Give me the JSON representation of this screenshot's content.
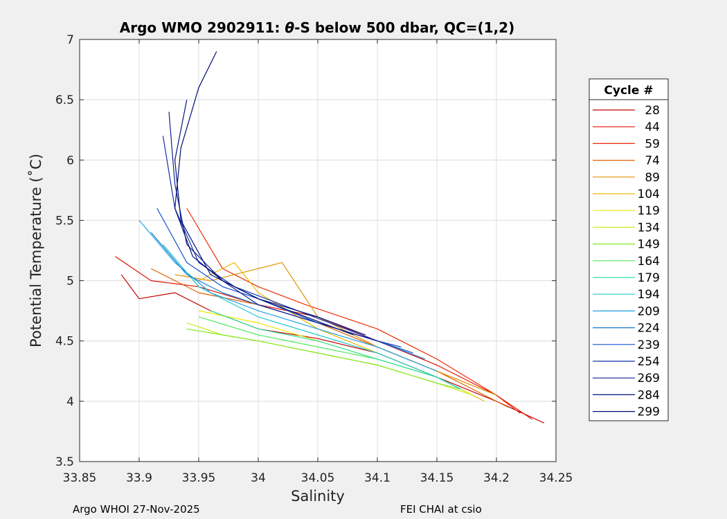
{
  "chart_data": {
    "type": "line",
    "title_prefix": "Argo WMO 2902911: ",
    "title_theta": "θ",
    "title_suffix": "-S below 500 dbar,  QC=(1,2)",
    "xlabel": "Salinity",
    "ylabel": "Potential Temperature (˚C)",
    "xlim": [
      33.85,
      34.25
    ],
    "ylim": [
      3.5,
      7
    ],
    "xticks": [
      33.85,
      33.9,
      33.95,
      34,
      34.05,
      34.1,
      34.15,
      34.2,
      34.25
    ],
    "xtick_labels": [
      "33.85",
      "33.9",
      "33.95",
      "34",
      "34.05",
      "34.1",
      "34.15",
      "34.2",
      "34.25"
    ],
    "yticks": [
      3.5,
      4,
      4.5,
      5,
      5.5,
      6,
      6.5,
      7
    ],
    "ytick_labels": [
      "3.5",
      "4",
      "4.5",
      "5",
      "5.5",
      "6",
      "6.5",
      "7"
    ],
    "grid": true,
    "legend_title": "Cycle #",
    "legend_position": "right-outside",
    "legend_entries": [
      "28",
      "44",
      "59",
      "74",
      "89",
      "104",
      "119",
      "134",
      "149",
      "164",
      "179",
      "194",
      "209",
      "224",
      "239",
      "254",
      "269",
      "284",
      "299"
    ],
    "legend_colors": [
      "#c00000",
      "#e01000",
      "#f02800",
      "#e06000",
      "#e09000",
      "#f0b800",
      "#e8e800",
      "#c8ec20",
      "#80e820",
      "#50e860",
      "#30e0a0",
      "#20c8d0",
      "#20a0e0",
      "#1078d0",
      "#1050d0",
      "#1030a8",
      "#102090",
      "#001480",
      "#000c70"
    ],
    "series": [
      {
        "name": "28",
        "color": "#c00000",
        "x": [
          33.885,
          33.9,
          33.93,
          33.96,
          34.0,
          34.05,
          34.1,
          34.15,
          34.2,
          34.24
        ],
        "y": [
          5.05,
          4.85,
          4.9,
          4.75,
          4.6,
          4.52,
          4.4,
          4.2,
          4.0,
          3.82
        ]
      },
      {
        "name": "44",
        "color": "#e01000",
        "x": [
          33.88,
          33.91,
          33.95,
          34.0,
          34.05,
          34.1,
          34.15,
          34.2,
          34.23
        ],
        "y": [
          5.2,
          5.0,
          4.95,
          4.8,
          4.7,
          4.5,
          4.3,
          4.05,
          3.85
        ]
      },
      {
        "name": "59",
        "color": "#f02800",
        "x": [
          33.94,
          33.97,
          34.0,
          34.04,
          34.1,
          34.15,
          34.2,
          34.22
        ],
        "y": [
          5.6,
          5.1,
          4.95,
          4.8,
          4.6,
          4.35,
          4.05,
          3.9
        ]
      },
      {
        "name": "74",
        "color": "#e06000",
        "x": [
          33.91,
          33.95,
          34.0,
          34.05,
          34.1,
          34.15,
          34.2,
          34.21
        ],
        "y": [
          5.1,
          4.9,
          4.8,
          4.65,
          4.45,
          4.25,
          4.0,
          3.95
        ]
      },
      {
        "name": "89",
        "color": "#e09000",
        "x": [
          33.93,
          33.96,
          34.0,
          34.02,
          34.05,
          34.1,
          34.15,
          34.2
        ],
        "y": [
          5.05,
          5.0,
          5.1,
          5.15,
          4.7,
          4.45,
          4.25,
          4.05
        ]
      },
      {
        "name": "104",
        "color": "#f0b800",
        "x": [
          33.95,
          33.98,
          34.0,
          34.05,
          34.1,
          34.15,
          34.19
        ],
        "y": [
          5.0,
          5.15,
          4.9,
          4.6,
          4.4,
          4.2,
          4.0
        ]
      },
      {
        "name": "119",
        "color": "#e8e800",
        "x": [
          33.95,
          34.0,
          34.05,
          34.1,
          34.15,
          34.18
        ],
        "y": [
          4.75,
          4.65,
          4.5,
          4.35,
          4.2,
          4.05
        ]
      },
      {
        "name": "134",
        "color": "#c8ec20",
        "x": [
          33.94,
          33.97,
          34.0,
          34.05,
          34.1,
          34.15,
          34.18
        ],
        "y": [
          4.65,
          4.55,
          4.5,
          4.4,
          4.3,
          4.15,
          4.05
        ]
      },
      {
        "name": "149",
        "color": "#80e820",
        "x": [
          33.94,
          33.97,
          34.0,
          34.05,
          34.1,
          34.15,
          34.17
        ],
        "y": [
          4.6,
          4.55,
          4.5,
          4.4,
          4.3,
          4.15,
          4.1
        ]
      },
      {
        "name": "164",
        "color": "#50e860",
        "x": [
          33.95,
          34.0,
          34.05,
          34.1,
          34.15,
          34.17
        ],
        "y": [
          4.7,
          4.55,
          4.45,
          4.35,
          4.2,
          4.1
        ]
      },
      {
        "name": "179",
        "color": "#30e0a0",
        "x": [
          33.96,
          34.0,
          34.05,
          34.1,
          34.15,
          34.17
        ],
        "y": [
          4.75,
          4.6,
          4.5,
          4.35,
          4.2,
          4.1
        ]
      },
      {
        "name": "194",
        "color": "#20c8d0",
        "x": [
          33.92,
          33.95,
          34.0,
          34.05,
          34.1,
          34.15,
          34.17
        ],
        "y": [
          5.3,
          4.95,
          4.7,
          4.55,
          4.4,
          4.2,
          4.1
        ]
      },
      {
        "name": "209",
        "color": "#20a0e0",
        "x": [
          33.9,
          33.93,
          33.96,
          34.0,
          34.05,
          34.1,
          34.15
        ],
        "y": [
          5.5,
          5.15,
          4.9,
          4.75,
          4.6,
          4.45,
          4.25
        ]
      },
      {
        "name": "224",
        "color": "#1078d0",
        "x": [
          33.91,
          33.94,
          33.97,
          34.0,
          34.05,
          34.1,
          34.14
        ],
        "y": [
          5.4,
          5.05,
          4.9,
          4.8,
          4.65,
          4.5,
          4.35
        ]
      },
      {
        "name": "239",
        "color": "#1050d0",
        "x": [
          33.915,
          33.94,
          33.97,
          34.0,
          34.05,
          34.1,
          34.13
        ],
        "y": [
          5.6,
          5.15,
          4.95,
          4.85,
          4.65,
          4.5,
          4.4
        ]
      },
      {
        "name": "254",
        "color": "#1030a8",
        "x": [
          33.92,
          33.93,
          33.95,
          33.98,
          34.02,
          34.06,
          34.1,
          34.12
        ],
        "y": [
          6.2,
          5.6,
          5.15,
          4.95,
          4.8,
          4.65,
          4.5,
          4.45
        ]
      },
      {
        "name": "269",
        "color": "#102090",
        "x": [
          33.925,
          33.93,
          33.94,
          33.97,
          34.0,
          34.05,
          34.1
        ],
        "y": [
          6.4,
          5.8,
          5.3,
          5.0,
          4.8,
          4.65,
          4.5
        ]
      },
      {
        "name": "284",
        "color": "#001480",
        "x": [
          33.94,
          33.93,
          33.935,
          33.96,
          34.0,
          34.05,
          34.09
        ],
        "y": [
          6.5,
          6.0,
          5.5,
          5.05,
          4.85,
          4.7,
          4.55
        ]
      },
      {
        "name": "299",
        "color": "#000c70",
        "x": [
          33.965,
          33.95,
          33.935,
          33.93,
          33.945,
          33.97,
          34.0,
          34.04,
          34.08
        ],
        "y": [
          6.9,
          6.6,
          6.1,
          5.6,
          5.2,
          5.0,
          4.85,
          4.7,
          4.55
        ]
      }
    ]
  },
  "footer": {
    "left": "Argo WHOI 27-Nov-2025",
    "right": "FEI CHAI at csio"
  }
}
